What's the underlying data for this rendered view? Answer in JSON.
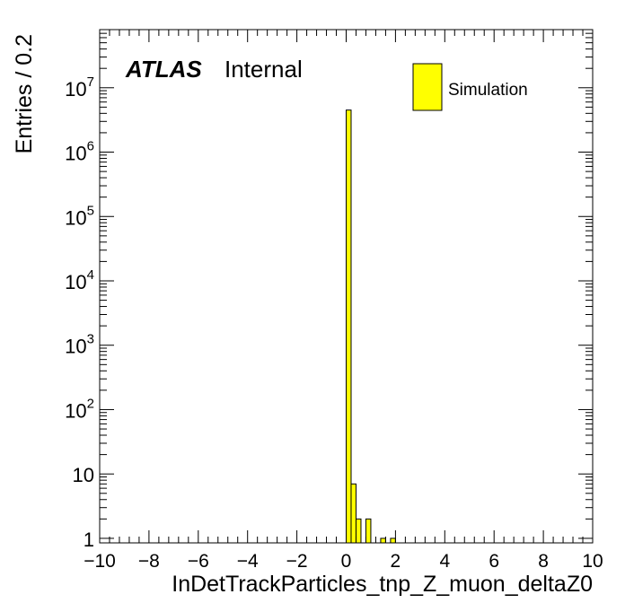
{
  "chart_data": {
    "type": "bar",
    "subtype": "histogram",
    "x_variable_label": "InDetTrackParticles_tnp_Z_muon_deltaZ0",
    "ylabel": "Entries / 0.2",
    "xlim": [
      -10,
      10
    ],
    "ylim": [
      0.85,
      80000000
    ],
    "yscale": "log",
    "bin_width": 0.2,
    "x_ticks": [
      "−10",
      "−8",
      "−6",
      "−4",
      "−2",
      "0",
      "2",
      "4",
      "6",
      "8",
      "10"
    ],
    "y_tick_labels": [
      {
        "value": 1,
        "base": "1",
        "exp": ""
      },
      {
        "value": 10,
        "base": "10",
        "exp": ""
      },
      {
        "value": 100,
        "base": "10",
        "exp": "2"
      },
      {
        "value": 1000,
        "base": "10",
        "exp": "3"
      },
      {
        "value": 10000,
        "base": "10",
        "exp": "4"
      },
      {
        "value": 100000,
        "base": "10",
        "exp": "5"
      },
      {
        "value": 1000000,
        "base": "10",
        "exp": "6"
      },
      {
        "value": 10000000,
        "base": "10",
        "exp": "7"
      }
    ],
    "series": [
      {
        "name": "Simulation",
        "color": "#ffff00",
        "edge_color": "#000000",
        "bins": [
          {
            "x_low": 0.0,
            "x_high": 0.2,
            "value": 4500000
          },
          {
            "x_low": 0.2,
            "x_high": 0.4,
            "value": 7
          },
          {
            "x_low": 0.4,
            "x_high": 0.6,
            "value": 2
          },
          {
            "x_low": 0.8,
            "x_high": 1.0,
            "value": 2
          },
          {
            "x_low": 1.4,
            "x_high": 1.6,
            "value": 1
          },
          {
            "x_low": 1.8,
            "x_high": 2.0,
            "value": 1
          }
        ]
      }
    ],
    "legend": {
      "placement": "top-right",
      "entries": [
        {
          "label": "Simulation",
          "color": "#ffff00"
        }
      ]
    },
    "annotation": {
      "atlas": "ATLAS",
      "status": "Internal"
    },
    "grid": false
  }
}
